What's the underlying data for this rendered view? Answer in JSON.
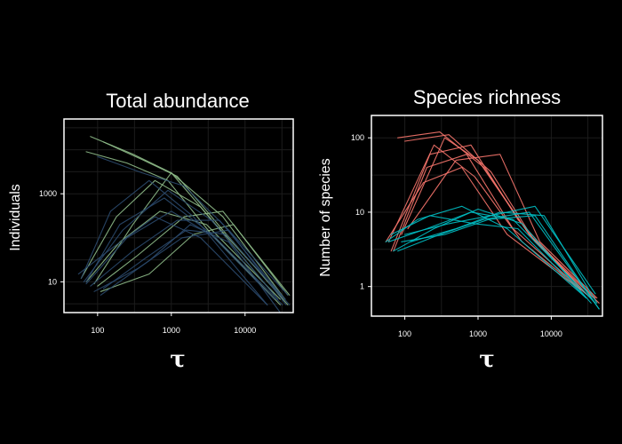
{
  "chart_data": [
    {
      "type": "line",
      "title": "Total abundance",
      "xlabel": "τ",
      "ylabel": "Individuals",
      "x_scale": "log",
      "y_scale": "log",
      "xlim": [
        35,
        45000
      ],
      "ylim": [
        2,
        50000
      ],
      "x_ticks": [
        {
          "value": 100,
          "label": "100"
        },
        {
          "value": 1000,
          "label": "1000"
        },
        {
          "value": 10000,
          "label": "10000"
        }
      ],
      "y_ticks": [
        {
          "value": 10,
          "label": "10"
        },
        {
          "value": 1000,
          "label": "1000"
        }
      ],
      "grid": true,
      "colors": {
        "group_a": "#8fbc8a",
        "group_b": "#2b4a6e"
      },
      "series": [
        {
          "group": "a",
          "x": [
            80,
            300,
            1000,
            4000,
            35000
          ],
          "y": [
            20000,
            8000,
            3000,
            200,
            4
          ]
        },
        {
          "group": "a",
          "x": [
            120,
            400,
            1200,
            5000,
            38000
          ],
          "y": [
            15000,
            6000,
            2500,
            150,
            3
          ]
        },
        {
          "group": "a",
          "x": [
            70,
            250,
            900,
            3500,
            30000
          ],
          "y": [
            9000,
            5000,
            2000,
            120,
            3
          ]
        },
        {
          "group": "a",
          "x": [
            70,
            200,
            700,
            3000,
            30000
          ],
          "y": [
            10,
            80,
            400,
            200,
            4
          ]
        },
        {
          "group": "a",
          "x": [
            100,
            350,
            1500,
            5000,
            40000
          ],
          "y": [
            8,
            40,
            300,
            400,
            5
          ]
        },
        {
          "group": "a",
          "x": [
            60,
            180,
            600,
            2500,
            25000
          ],
          "y": [
            12,
            300,
            2000,
            500,
            5
          ]
        },
        {
          "group": "a",
          "x": [
            110,
            500,
            2000,
            7000,
            38000
          ],
          "y": [
            6,
            15,
            120,
            200,
            5
          ]
        },
        {
          "group": "a",
          "x": [
            90,
            300,
            1000,
            5000,
            35000
          ],
          "y": [
            9,
            200,
            3000,
            300,
            4
          ]
        },
        {
          "group": "b",
          "x": [
            100,
            400,
            1500,
            6000,
            36000
          ],
          "y": [
            7000,
            3000,
            1500,
            150,
            3
          ]
        },
        {
          "group": "b",
          "x": [
            70,
            200,
            800,
            3000,
            25000
          ],
          "y": [
            10,
            200,
            800,
            150,
            4
          ]
        },
        {
          "group": "b",
          "x": [
            80,
            300,
            1200,
            4500,
            35000
          ],
          "y": [
            8,
            50,
            250,
            250,
            4
          ]
        },
        {
          "group": "b",
          "x": [
            60,
            150,
            500,
            2000,
            20000
          ],
          "y": [
            12,
            400,
            2000,
            300,
            3
          ]
        },
        {
          "group": "b",
          "x": [
            90,
            350,
            1400,
            6000,
            38000
          ],
          "y": [
            6,
            20,
            100,
            150,
            5
          ]
        },
        {
          "group": "b",
          "x": [
            110,
            500,
            1800,
            6000,
            30000
          ],
          "y": [
            5,
            30,
            200,
            80,
            2
          ]
        },
        {
          "group": "b",
          "x": [
            70,
            250,
            1000,
            4000,
            32000
          ],
          "y": [
            9,
            100,
            400,
            100,
            3
          ]
        },
        {
          "group": "b",
          "x": [
            55,
            160,
            600,
            2500,
            20000
          ],
          "y": [
            15,
            60,
            300,
            100,
            3
          ]
        },
        {
          "group": "b",
          "x": [
            120,
            450,
            1600,
            5500,
            40000
          ],
          "y": [
            7,
            35,
            150,
            120,
            3
          ]
        },
        {
          "group": "b",
          "x": [
            65,
            220,
            900,
            3500,
            28000
          ],
          "y": [
            10,
            150,
            1200,
            250,
            4
          ]
        }
      ]
    },
    {
      "type": "line",
      "title": "Species richness",
      "xlabel": "τ",
      "ylabel": "Number of species",
      "x_scale": "log",
      "y_scale": "log",
      "xlim": [
        35,
        50000
      ],
      "ylim": [
        0.4,
        200
      ],
      "x_ticks": [
        {
          "value": 100,
          "label": "100"
        },
        {
          "value": 1000,
          "label": "1000"
        },
        {
          "value": 10000,
          "label": "10000"
        }
      ],
      "y_ticks": [
        {
          "value": 1,
          "label": "1"
        },
        {
          "value": 10,
          "label": "10"
        },
        {
          "value": 100,
          "label": "100"
        }
      ],
      "grid": true,
      "colors": {
        "group_a": "#f8766d",
        "group_b": "#00bfc4"
      },
      "series": [
        {
          "group": "a",
          "x": [
            80,
            300,
            1200,
            5000,
            40000
          ],
          "y": [
            100,
            120,
            40,
            5,
            0.7
          ]
        },
        {
          "group": "a",
          "x": [
            100,
            400,
            1500,
            6000,
            45000
          ],
          "y": [
            90,
            110,
            35,
            4,
            0.6
          ]
        },
        {
          "group": "a",
          "x": [
            60,
            250,
            900,
            4000,
            35000
          ],
          "y": [
            4,
            80,
            30,
            4,
            0.7
          ]
        },
        {
          "group": "a",
          "x": [
            70,
            200,
            700,
            3000,
            30000
          ],
          "y": [
            3,
            40,
            60,
            6,
            0.8
          ]
        },
        {
          "group": "a",
          "x": [
            90,
            350,
            1000,
            5000,
            40000
          ],
          "y": [
            5,
            100,
            50,
            5,
            0.6
          ]
        },
        {
          "group": "a",
          "x": [
            55,
            180,
            600,
            2500,
            25000
          ],
          "y": [
            4,
            25,
            40,
            5,
            0.9
          ]
        },
        {
          "group": "a",
          "x": [
            110,
            500,
            2000,
            7000,
            42000
          ],
          "y": [
            6,
            50,
            60,
            4,
            0.7
          ]
        },
        {
          "group": "a",
          "x": [
            65,
            220,
            800,
            3500,
            30000
          ],
          "y": [
            3,
            60,
            80,
            8,
            0.8
          ]
        },
        {
          "group": "b",
          "x": [
            60,
            200,
            800,
            3000,
            40000
          ],
          "y": [
            4,
            6,
            10,
            8,
            0.6
          ]
        },
        {
          "group": "b",
          "x": [
            80,
            300,
            1200,
            5000,
            45000
          ],
          "y": [
            3,
            5,
            8,
            10,
            0.5
          ]
        },
        {
          "group": "b",
          "x": [
            55,
            150,
            600,
            2500,
            30000
          ],
          "y": [
            4,
            8,
            12,
            6,
            0.7
          ]
        },
        {
          "group": "b",
          "x": [
            100,
            400,
            1500,
            6000,
            40000
          ],
          "y": [
            5,
            7,
            9,
            12,
            0.8
          ]
        },
        {
          "group": "b",
          "x": [
            70,
            250,
            1000,
            4000,
            35000
          ],
          "y": [
            3,
            6,
            11,
            7,
            0.6
          ]
        },
        {
          "group": "b",
          "x": [
            90,
            350,
            1400,
            6000,
            45000
          ],
          "y": [
            4,
            5,
            8,
            9,
            0.5
          ]
        },
        {
          "group": "b",
          "x": [
            65,
            220,
            900,
            3500,
            30000
          ],
          "y": [
            5,
            9,
            7,
            6,
            0.7
          ]
        },
        {
          "group": "b",
          "x": [
            120,
            500,
            2000,
            8000,
            42000
          ],
          "y": [
            4,
            6,
            10,
            9,
            0.6
          ]
        }
      ]
    }
  ]
}
